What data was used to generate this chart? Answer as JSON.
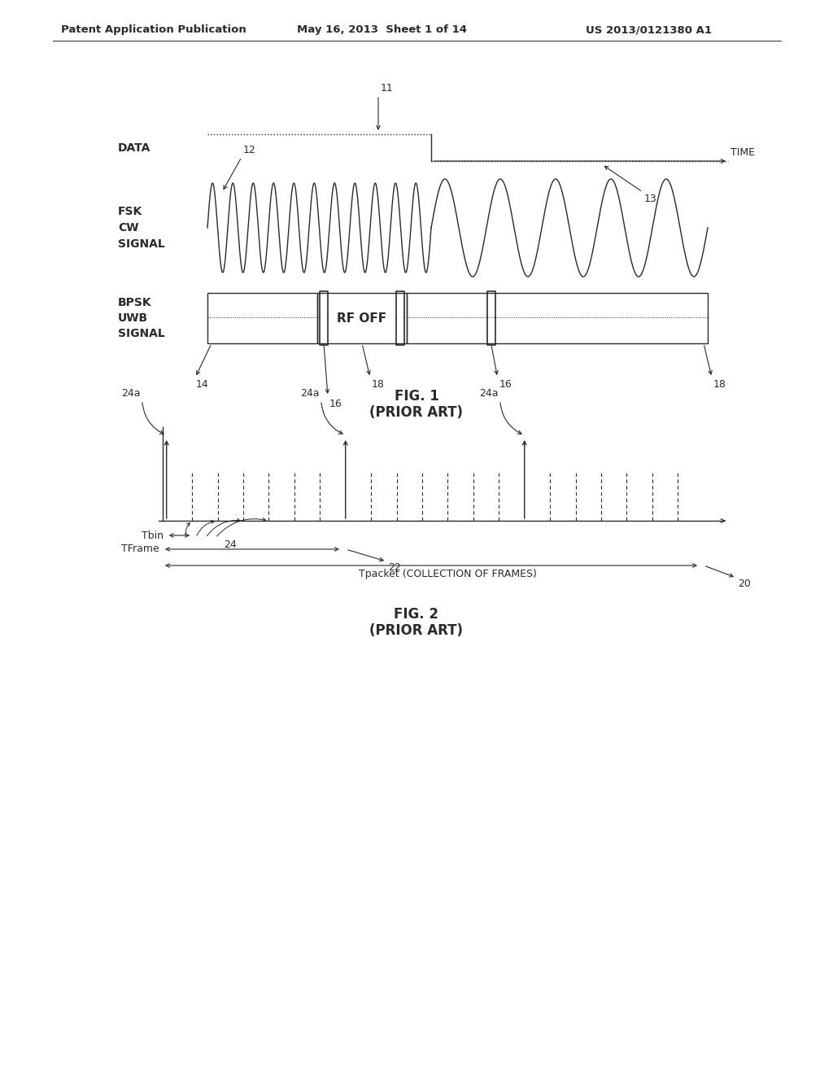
{
  "bg_color": "#ffffff",
  "line_color": "#2a2a2a",
  "header_text": "Patent Application Publication",
  "header_date": "May 16, 2013  Sheet 1 of 14",
  "header_patent": "US 2013/0121380 A1",
  "fig1_title": "FIG. 1",
  "fig1_subtitle": "(PRIOR ART)",
  "fig2_title": "FIG. 2",
  "fig2_subtitle": "(PRIOR ART)",
  "data_label": "DATA",
  "fsk_label": "FSK\nCW\nSIGNAL",
  "bpsk_label": "BPSK\nUWB\nSIGNAL",
  "time_label": "TIME",
  "rf_off_label": "RF OFF",
  "tbin_label": "Tbin",
  "tframe_label": "TFrame",
  "tpacket_label": "Tpacket (COLLECTION OF FRAMES)",
  "label_11": "11",
  "label_12": "12",
  "label_13": "13",
  "label_14": "14",
  "label_16": "16",
  "label_18": "18",
  "label_20": "20",
  "label_22": "22",
  "label_24": "24",
  "label_24a": "24a"
}
